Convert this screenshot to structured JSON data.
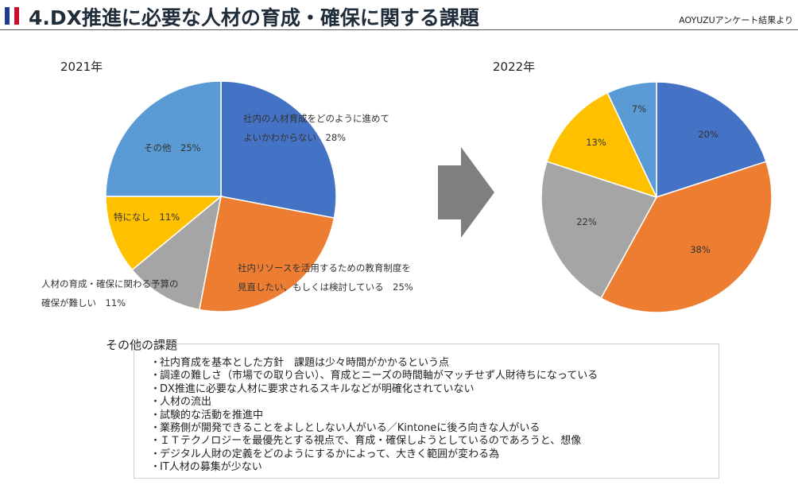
{
  "header": {
    "title": "4.DX推進に必要な人材の育成・確保に関する課題",
    "subtitle": "AOYUZUアンケート結果より",
    "flag_colors": [
      "#1f3b8f",
      "#ffffff",
      "#c8102e"
    ]
  },
  "chart_data": [
    {
      "type": "pie",
      "title": "2021年",
      "slices": [
        {
          "label_lines": [
            "社内の人材育成をどのように進めて",
            "よいかわからない　28%"
          ],
          "value": 28,
          "color": "#4472c4"
        },
        {
          "label_lines": [
            "社内リソースを活用するための教育制度を",
            "見直したい、もしくは検討している　25%"
          ],
          "value": 25,
          "color": "#ed7d31"
        },
        {
          "label_lines": [
            "人材の育成・確保に関わる予算の",
            "確保が難しい　11%"
          ],
          "value": 11,
          "color": "#a5a5a5"
        },
        {
          "label_lines": [
            "特になし　11%"
          ],
          "value": 11,
          "color": "#ffc000"
        },
        {
          "label_lines": [
            "その他　25%"
          ],
          "value": 25,
          "color": "#5b9bd5"
        }
      ]
    },
    {
      "type": "pie",
      "title": "2022年",
      "slices": [
        {
          "label_lines": [
            "20%"
          ],
          "value": 20,
          "color": "#4472c4"
        },
        {
          "label_lines": [
            "38%"
          ],
          "value": 38,
          "color": "#ed7d31"
        },
        {
          "label_lines": [
            "22%"
          ],
          "value": 22,
          "color": "#a5a5a5"
        },
        {
          "label_lines": [
            "13%"
          ],
          "value": 13,
          "color": "#ffc000"
        },
        {
          "label_lines": [
            "7%"
          ],
          "value": 7,
          "color": "#5b9bd5"
        }
      ]
    }
  ],
  "arrow_color": "#7f7f7f",
  "other_issues": {
    "title": "その他の課題",
    "bullet": "・",
    "items": [
      "社内育成を基本とした方針　課題は少々時間がかかるという点",
      "調達の難しさ（市場での取り合い）、育成とニーズの時間軸がマッチせず人財待ちになっている",
      "DX推進に必要な人材に要求されるスキルなどが明確化されていない",
      "人材の流出",
      "試験的な活動を推進中",
      "業務側が開発できることをよしとしない人がいる／Kintoneに後ろ向きな人がいる",
      "ＩＴテクノロジーを最優先とする視点で、育成・確保しようとしているのであろうと、想像",
      "デジタル人財の定義をどのようにするかによって、大きく範囲が変わる為",
      "IT人材の募集が少ない"
    ]
  }
}
